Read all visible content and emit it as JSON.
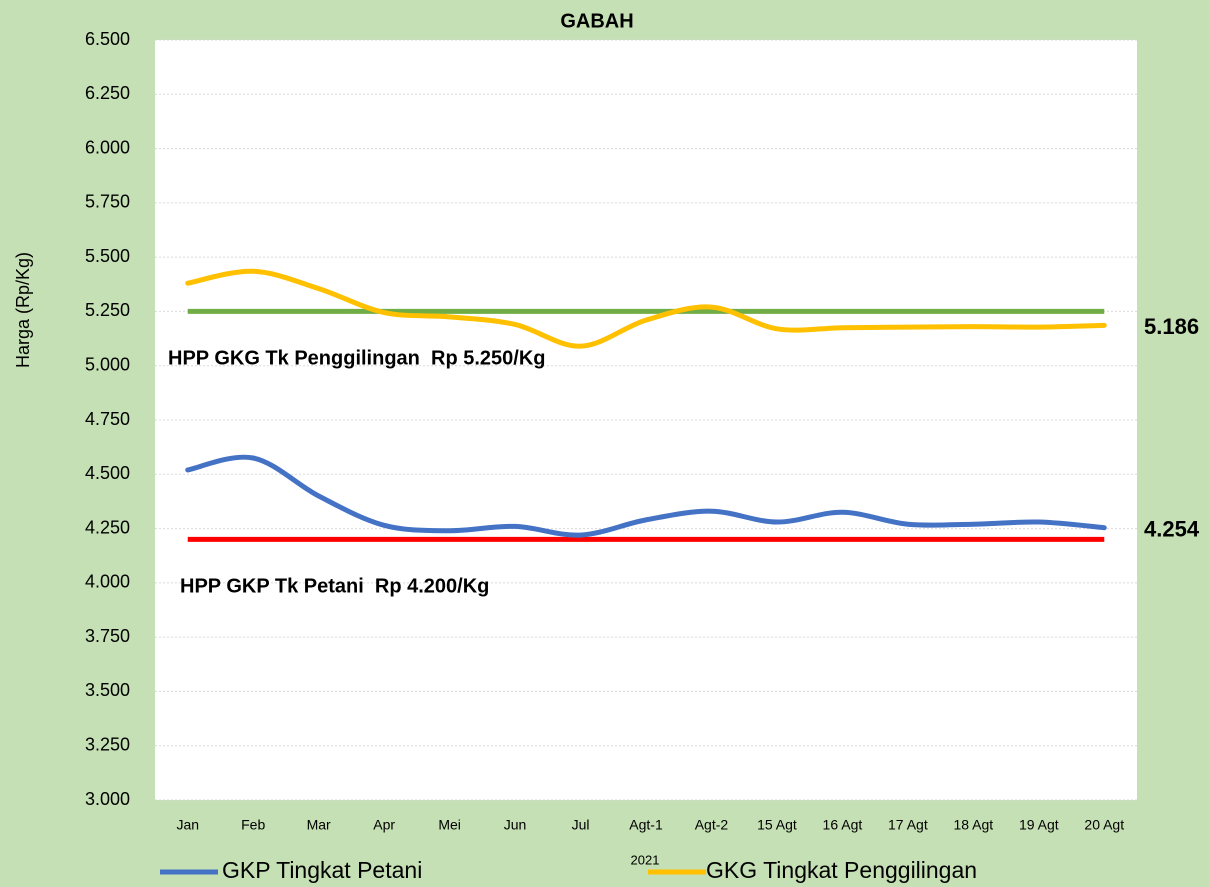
{
  "chart_data": {
    "type": "line",
    "title": "GABAH",
    "y_label": "Harga (Rp/Kg)",
    "x_label": "2021",
    "categories": [
      "Jan",
      "Feb",
      "Mar",
      "Apr",
      "Mei",
      "Jun",
      "Jul",
      "Agt-1",
      "Agt-2",
      "15 Agt",
      "16 Agt",
      "17 Agt",
      "18 Agt",
      "19 Agt",
      "20 Agt"
    ],
    "series": [
      {
        "name": "GKP Tingkat Petani",
        "color": "#4472c4",
        "values": [
          4520,
          4575,
          4400,
          4265,
          4240,
          4260,
          4220,
          4290,
          4330,
          4280,
          4325,
          4270,
          4270,
          4280,
          4254
        ],
        "value_labels": [
          null,
          null,
          null,
          null,
          null,
          null,
          null,
          null,
          null,
          null,
          null,
          null,
          null,
          null,
          "4.254"
        ]
      },
      {
        "name": "GKG Tingkat Penggilingan",
        "color": "#ffc000",
        "values": [
          5380,
          5435,
          5355,
          5245,
          5225,
          5190,
          5090,
          5210,
          5270,
          5170,
          5175,
          5178,
          5180,
          5178,
          5186
        ],
        "value_labels": [
          null,
          null,
          null,
          null,
          null,
          null,
          null,
          null,
          null,
          null,
          null,
          null,
          null,
          null,
          "5.186"
        ]
      }
    ],
    "reference_lines": [
      {
        "value": 5250,
        "color": "#70ad47",
        "label": "HPP GKG Tk Penggilingan  Rp 5.250/Kg"
      },
      {
        "value": 4200,
        "color": "#ff0000",
        "label": "HPP GKP Tk Petani  Rp 4.200/Kg"
      }
    ],
    "ylim": [
      3000,
      6500
    ],
    "yticks": [
      {
        "value": 3000,
        "label": "3.000"
      },
      {
        "value": 3250,
        "label": "3.250"
      },
      {
        "value": 3500,
        "label": "3.500"
      },
      {
        "value": 3750,
        "label": "3.750"
      },
      {
        "value": 4000,
        "label": "4.000"
      },
      {
        "value": 4250,
        "label": "4.250"
      },
      {
        "value": 4500,
        "label": "4.500"
      },
      {
        "value": 4750,
        "label": "4.750"
      },
      {
        "value": 5000,
        "label": "5.000"
      },
      {
        "value": 5250,
        "label": "5.250"
      },
      {
        "value": 5500,
        "label": "5.500"
      },
      {
        "value": 5750,
        "label": "5.750"
      },
      {
        "value": 6000,
        "label": "6.000"
      },
      {
        "value": 6250,
        "label": "6.250"
      },
      {
        "value": 6500,
        "label": "6.500"
      }
    ],
    "grid": true
  }
}
